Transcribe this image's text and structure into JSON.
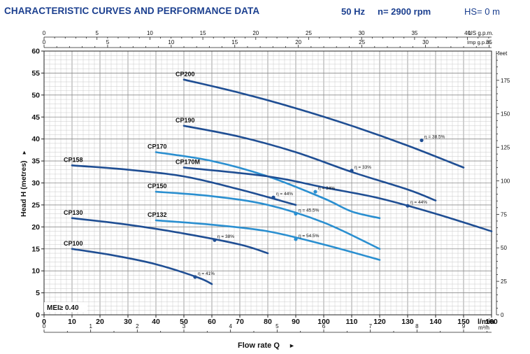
{
  "header": {
    "title": "CHARACTERISTIC CURVES AND PERFORMANCE DATA",
    "frequency": "50 Hz",
    "speed": "n= 2900 rpm",
    "suction_height": "HS= 0 m"
  },
  "colors": {
    "dark_curve": "#1f4e93",
    "light_curve": "#2a8fd0",
    "title_blue": "#1b3f8f",
    "grid_minor": "#c9c9c9",
    "grid_major": "#8c8c8c"
  },
  "chart_data": {
    "type": "line",
    "xlabel": "Flow rate Q",
    "ylabel": "Head H  (metres)",
    "x_unit": "l/min",
    "xlim": [
      0,
      160
    ],
    "ylim": [
      0,
      60
    ],
    "grid": true,
    "x_ticks": [
      0,
      10,
      20,
      30,
      40,
      50,
      60,
      70,
      80,
      90,
      100,
      110,
      120,
      130,
      140,
      150,
      160
    ],
    "y_ticks": [
      0,
      5,
      10,
      15,
      20,
      25,
      30,
      35,
      40,
      45,
      50,
      55,
      60
    ],
    "secondary_axes": {
      "top_us": {
        "unit": "US g.p.m.",
        "ticks": [
          0,
          5,
          10,
          15,
          20,
          25,
          30,
          35,
          40
        ],
        "lpm_per_unit": 3.785
      },
      "top_imp": {
        "unit": "Imp g.p.m.",
        "ticks": [
          0,
          5,
          10,
          15,
          20,
          25,
          30,
          35
        ],
        "lpm_per_unit": 4.546
      },
      "bottom_m3h": {
        "unit": "m³/h",
        "ticks": [
          0,
          1,
          2,
          3,
          4,
          5,
          6,
          7,
          8,
          9
        ],
        "lpm_per_unit": 16.667
      },
      "right_feet": {
        "unit": "feet",
        "ticks": [
          0,
          25,
          50,
          75,
          100,
          125,
          150,
          175
        ],
        "m_per_unit": 0.3048
      }
    },
    "annotation": "MEI≥ 0.40",
    "series": [
      {
        "name": "CP200",
        "style": "dark",
        "x": [
          50,
          70,
          90,
          110,
          130,
          150
        ],
        "y": [
          53.5,
          50.5,
          47,
          43,
          38.5,
          33.5
        ],
        "eff_label": "η = 38.5%",
        "eff_at": [
          135,
          39.7
        ]
      },
      {
        "name": "CP190",
        "style": "dark",
        "x": [
          50,
          70,
          90,
          110,
          130,
          140
        ],
        "y": [
          43,
          40.5,
          37,
          32.5,
          28.5,
          26
        ],
        "eff_label": "η = 33%",
        "eff_at": [
          110,
          32.8
        ]
      },
      {
        "name": "CP170",
        "style": "light",
        "x": [
          40,
          60,
          80,
          100,
          110,
          120
        ],
        "y": [
          37,
          35,
          31.5,
          26.5,
          23.5,
          22
        ],
        "eff_label": "η = 34%",
        "eff_at": [
          97,
          28
        ]
      },
      {
        "name": "CP170M",
        "style": "dark",
        "x": [
          50,
          80,
          100,
          120,
          140,
          160
        ],
        "y": [
          33.5,
          31.5,
          29,
          26.5,
          23,
          19
        ],
        "eff_label": "η = 44%",
        "eff_at": [
          130,
          24.8
        ]
      },
      {
        "name": "CP158",
        "style": "dark",
        "x": [
          10,
          30,
          50,
          70,
          90
        ],
        "y": [
          34,
          33,
          31.5,
          28.5,
          25
        ],
        "eff_label": "η = 44%",
        "eff_at": [
          82,
          26.7
        ]
      },
      {
        "name": "CP150",
        "style": "light",
        "x": [
          40,
          60,
          80,
          100,
          120
        ],
        "y": [
          28,
          27,
          25,
          21,
          15
        ],
        "eff_label": "η = 45.5%",
        "eff_at": [
          90,
          23
        ]
      },
      {
        "name": "CP132",
        "style": "light",
        "x": [
          40,
          60,
          80,
          100,
          120
        ],
        "y": [
          21.5,
          20.5,
          19,
          16,
          12.5
        ],
        "eff_label": "η = 54.5%",
        "eff_at": [
          90,
          17.2
        ]
      },
      {
        "name": "CP130",
        "style": "dark",
        "x": [
          10,
          30,
          50,
          70,
          80
        ],
        "y": [
          22,
          20.5,
          18.5,
          16,
          14
        ],
        "eff_label": "η = 38%",
        "eff_at": [
          61,
          17
        ]
      },
      {
        "name": "CP100",
        "style": "dark",
        "x": [
          10,
          25,
          40,
          55,
          60
        ],
        "y": [
          15,
          13.5,
          11.5,
          8.5,
          7
        ],
        "eff_label": "η = 41%",
        "eff_at": [
          54,
          8.6
        ]
      }
    ]
  }
}
